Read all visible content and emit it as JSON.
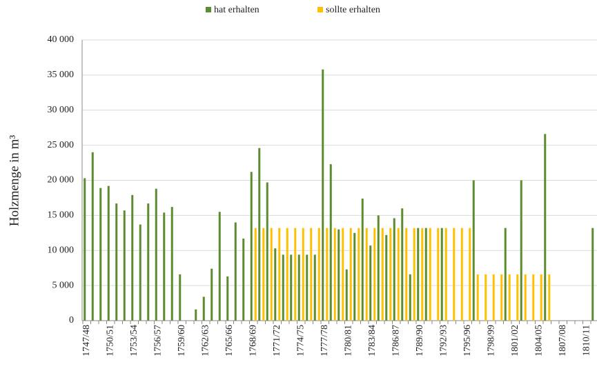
{
  "chart_data": {
    "type": "bar",
    "y_label": "Holzmenge in m³",
    "categories": [
      "1747/48",
      null,
      null,
      "1750/51",
      null,
      null,
      "1753/54",
      null,
      null,
      "1756/57",
      null,
      null,
      "1759/60",
      null,
      null,
      "1762/63",
      null,
      null,
      "1765/66",
      null,
      null,
      "1768/69",
      null,
      null,
      "1771/72",
      null,
      null,
      "1774/75",
      null,
      null,
      "1777/78",
      null,
      null,
      "1780/81",
      null,
      null,
      "1783/84",
      null,
      null,
      "1786/87",
      null,
      null,
      "1789/90",
      null,
      null,
      "1792/93",
      null,
      null,
      "1795/96",
      null,
      null,
      "1798/99",
      null,
      null,
      "1801/02",
      null,
      null,
      "1804/05",
      null,
      null,
      "1807/08",
      null,
      null,
      "1810/11",
      null
    ],
    "series": [
      {
        "name": "hat erhalten",
        "color": "#5b8c2f",
        "values": [
          20300,
          24000,
          18900,
          19200,
          16700,
          15700,
          17900,
          13700,
          16700,
          18800,
          15400,
          16200,
          6600,
          null,
          1600,
          3400,
          7400,
          15500,
          6300,
          14000,
          11700,
          21200,
          24600,
          19700,
          10300,
          9400,
          9400,
          9400,
          9400,
          9400,
          35800,
          22300,
          13000,
          7300,
          12500,
          17400,
          10700,
          15000,
          12200,
          14600,
          16000,
          6600,
          13200,
          13200,
          null,
          13200,
          null,
          null,
          null,
          20000,
          null,
          null,
          null,
          13200,
          null,
          20000,
          null,
          null,
          26600,
          null,
          null,
          null,
          null,
          null,
          13200
        ]
      },
      {
        "name": "sollte erhalten",
        "color": "#ffc000",
        "values": [
          null,
          null,
          null,
          null,
          null,
          null,
          null,
          null,
          null,
          null,
          null,
          null,
          null,
          null,
          null,
          null,
          null,
          null,
          null,
          null,
          null,
          13200,
          13200,
          13200,
          13200,
          13200,
          13200,
          13200,
          13200,
          13200,
          13200,
          13200,
          13200,
          13200,
          13200,
          13200,
          13200,
          13200,
          13200,
          13200,
          13200,
          13200,
          13200,
          13200,
          13200,
          13200,
          13200,
          13200,
          13200,
          6600,
          6600,
          6600,
          6600,
          6600,
          6600,
          6600,
          6600,
          6600,
          6600,
          null,
          null,
          null,
          null,
          null,
          null
        ]
      }
    ],
    "ylim": [
      0,
      40000
    ],
    "yticks": [
      0,
      {
        "value": 5000,
        "label": "5 000"
      },
      {
        "value": 10000,
        "label": "10 000"
      },
      {
        "value": 15000,
        "label": "15 000"
      },
      {
        "value": 20000,
        "label": "20 000"
      },
      {
        "value": 25000,
        "label": "25 000"
      },
      {
        "value": 30000,
        "label": "30 000"
      },
      {
        "value": 35000,
        "label": "35 000"
      },
      {
        "value": 40000,
        "label": "40 000"
      }
    ],
    "grid": true,
    "legend": "top"
  }
}
